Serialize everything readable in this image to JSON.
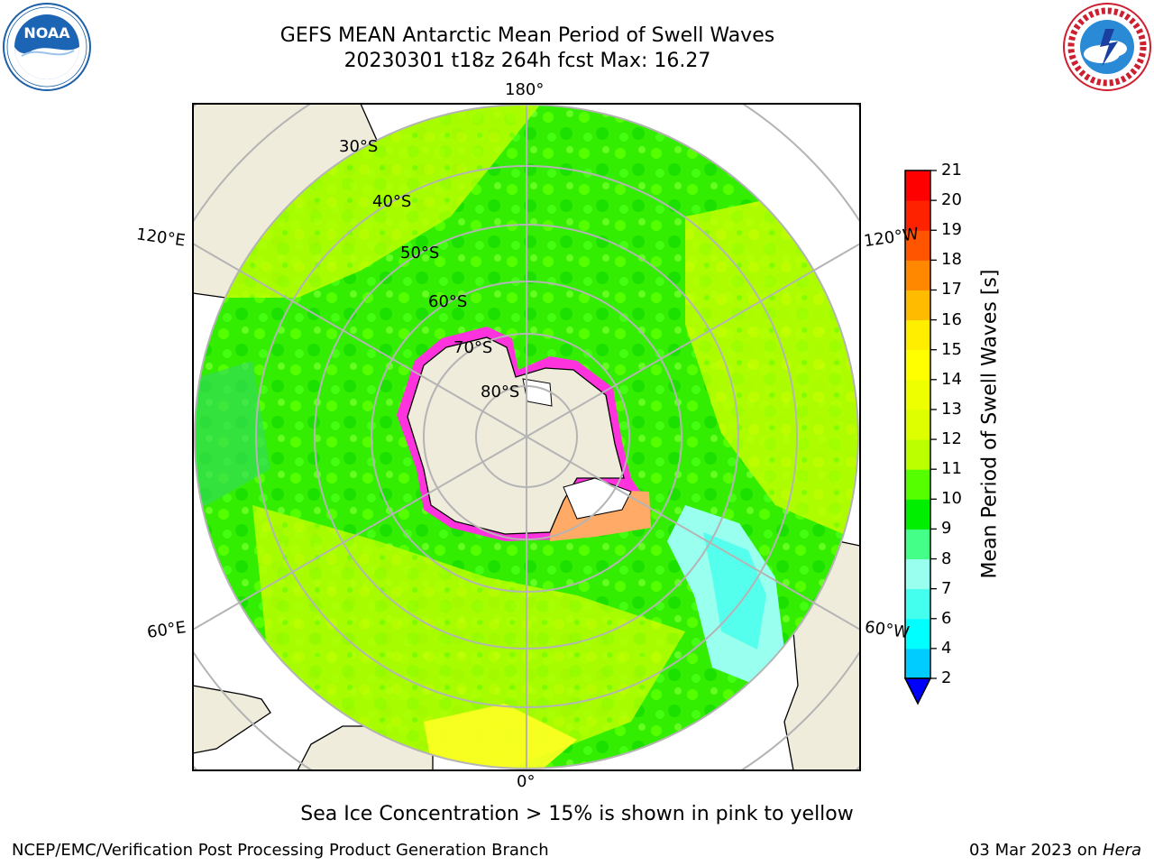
{
  "header": {
    "title_line1": "GEFS MEAN Antarctic Mean Period of Swell Waves",
    "title_line2": "20230301 t18z 264h fcst   Max: 16.27"
  },
  "logos": {
    "left": {
      "name": "NOAA",
      "icon": "noaa-logo"
    },
    "right": {
      "name": "NATIONAL WEATHER SERVICE",
      "icon": "nws-logo"
    }
  },
  "map": {
    "projection": "south-polar-stereographic",
    "longitude_labels": {
      "top": "180°",
      "bottom": "0°",
      "upper_left": "120°E",
      "upper_right": "120°W",
      "lower_left": "60°E",
      "lower_right": "60°W"
    },
    "latitude_labels": [
      "30°S",
      "40°S",
      "50°S",
      "60°S",
      "70°S",
      "80°S"
    ],
    "colors": {
      "land": "#efecdc",
      "ocean_dominant": "#33ee00",
      "ocean_secondary": "#bbff00",
      "sea_ice": "#ff33dd",
      "gridline": "#b4b4b4"
    }
  },
  "colorbar": {
    "label": "Mean Period of Swell Waves [s]",
    "ticks": [
      "2",
      "4",
      "6",
      "7",
      "8",
      "9",
      "10",
      "11",
      "12",
      "13",
      "14",
      "15",
      "16",
      "17",
      "18",
      "19",
      "20",
      "21"
    ],
    "colors": [
      "#0066ff",
      "#00ccff",
      "#00ffff",
      "#44ffee",
      "#99ffee",
      "#44ff88",
      "#00ee00",
      "#55ff00",
      "#bbff00",
      "#ddff00",
      "#eeff00",
      "#ffff00",
      "#ffee00",
      "#ffbb00",
      "#ff8800",
      "#ff5500",
      "#ff2200",
      "#ff0000"
    ],
    "under_color": "#0000ff"
  },
  "caption": "Sea Ice Concentration > 15% is shown in pink to yellow",
  "footer": {
    "left": "NCEP/EMC/Verification Post Processing Product Generation Branch",
    "right_date": "03 Mar 2023 on ",
    "right_host": "Hera"
  }
}
